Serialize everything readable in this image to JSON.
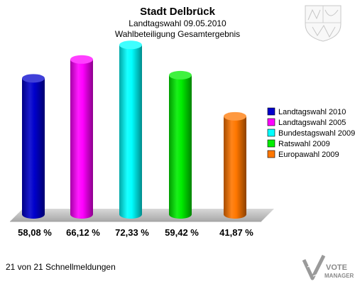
{
  "header": {
    "title": "Stadt Delbrück",
    "subtitle1": "Landtagswahl 09.05.2010",
    "subtitle2": "Wahlbeteiligung Gesamtergebnis"
  },
  "chart_data": {
    "type": "bar",
    "title": "Stadt Delbrück",
    "subtitle": "Landtagswahl 09.05.2010 — Wahlbeteiligung Gesamtergebnis",
    "categories": [
      "Landtagswahl 2010",
      "Landtagswahl 2005",
      "Bundestagswahl 2009",
      "Ratswahl 2009",
      "Europawahl 2009"
    ],
    "values": [
      58.08,
      66.12,
      72.33,
      59.42,
      41.87
    ],
    "value_labels": [
      "58,08 %",
      "66,12 %",
      "72,33 %",
      "59,42 %",
      "41,87 %"
    ],
    "colors": [
      "#0000cc",
      "#ff00ff",
      "#00ffff",
      "#00ee00",
      "#ff7700"
    ],
    "ylim": [
      0,
      80
    ],
    "grid": false,
    "legend_position": "right"
  },
  "footer": {
    "status": "21 von 21 Schnellmeldungen"
  },
  "logo": {
    "text_line1": "VOTE",
    "text_line2": "MANAGER",
    "icon": "vote-manager-icon"
  },
  "crest": {
    "icon": "nrw-coat-of-arms-icon"
  }
}
